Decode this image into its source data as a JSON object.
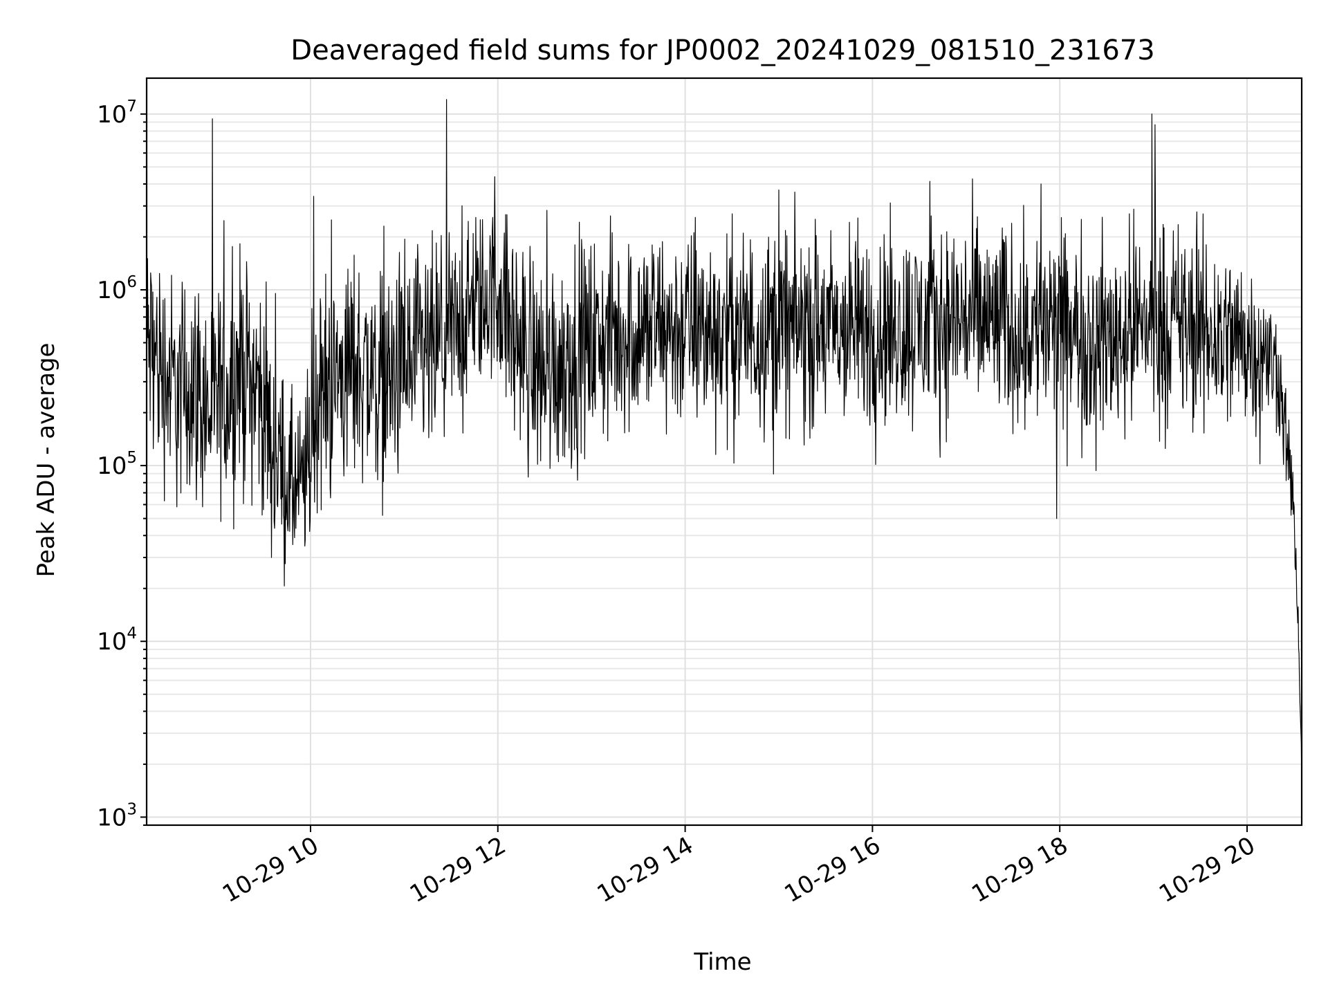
{
  "chart_data": {
    "type": "line",
    "title": "Deaveraged field sums for JP0002_20241029_081510_231673",
    "xlabel": "Time",
    "ylabel": "Peak ADU - average",
    "yscale": "log",
    "xlim": [
      "2024-10-29 08:15",
      "2024-10-29 20:35"
    ],
    "ylim": [
      900,
      16000000
    ],
    "grid": "both",
    "x_ticks": [
      {
        "value": "2024-10-29 10:00",
        "label": "10-29 10"
      },
      {
        "value": "2024-10-29 12:00",
        "label": "10-29 12"
      },
      {
        "value": "2024-10-29 14:00",
        "label": "10-29 14"
      },
      {
        "value": "2024-10-29 16:00",
        "label": "10-29 16"
      },
      {
        "value": "2024-10-29 18:00",
        "label": "10-29 18"
      },
      {
        "value": "2024-10-29 20:00",
        "label": "10-29 20"
      }
    ],
    "y_ticks": [
      {
        "value": 1000,
        "base": "10",
        "exp": "3"
      },
      {
        "value": 10000,
        "base": "10",
        "exp": "4"
      },
      {
        "value": 100000,
        "base": "10",
        "exp": "5"
      },
      {
        "value": 1000000,
        "base": "10",
        "exp": "6"
      },
      {
        "value": 10000000,
        "base": "10",
        "exp": "7"
      }
    ],
    "series": [
      {
        "color": "#000000",
        "x": [
          "2024-10-29 08:15",
          "2024-10-29 08:25",
          "2024-10-29 08:35",
          "2024-10-29 08:45",
          "2024-10-29 08:55",
          "2024-10-29 09:05",
          "2024-10-29 09:15",
          "2024-10-29 09:25",
          "2024-10-29 09:35",
          "2024-10-29 09:45",
          "2024-10-29 09:55",
          "2024-10-29 10:05",
          "2024-10-29 10:15",
          "2024-10-29 10:30",
          "2024-10-29 10:45",
          "2024-10-29 11:00",
          "2024-10-29 11:15",
          "2024-10-29 11:30",
          "2024-10-29 11:45",
          "2024-10-29 12:00",
          "2024-10-29 12:15",
          "2024-10-29 12:30",
          "2024-10-29 12:45",
          "2024-10-29 13:00",
          "2024-10-29 13:30",
          "2024-10-29 14:00",
          "2024-10-29 14:30",
          "2024-10-29 15:00",
          "2024-10-29 15:30",
          "2024-10-29 16:00",
          "2024-10-29 16:30",
          "2024-10-29 17:00",
          "2024-10-29 17:30",
          "2024-10-29 18:00",
          "2024-10-29 18:30",
          "2024-10-29 19:00",
          "2024-10-29 19:30",
          "2024-10-29 20:00",
          "2024-10-29 20:20",
          "2024-10-29 20:30",
          "2024-10-29 20:35"
        ],
        "y": [
          500000,
          350000,
          250000,
          300000,
          200000,
          250000,
          350000,
          300000,
          150000,
          80000,
          70000,
          250000,
          300000,
          380000,
          300000,
          350000,
          400000,
          550000,
          800000,
          1000000,
          450000,
          350000,
          420000,
          500000,
          580000,
          600000,
          580000,
          620000,
          580000,
          600000,
          620000,
          700000,
          620000,
          580000,
          520000,
          700000,
          560000,
          520000,
          350000,
          60000,
          2000
        ],
        "spread": [
          0.45,
          0.45,
          0.45,
          0.45,
          0.45,
          0.45,
          0.45,
          0.45,
          0.4,
          0.35,
          0.35,
          0.45,
          0.45,
          0.45,
          0.45,
          0.45,
          0.45,
          0.4,
          0.35,
          0.35,
          0.45,
          0.45,
          0.45,
          0.4,
          0.4,
          0.4,
          0.4,
          0.4,
          0.4,
          0.4,
          0.4,
          0.4,
          0.4,
          0.4,
          0.4,
          0.4,
          0.4,
          0.35,
          0.25,
          0.15,
          0.1
        ],
        "peaks": [
          {
            "x": "2024-10-29 10:02",
            "y": 3400000
          },
          {
            "x": "2024-10-29 11:58",
            "y": 4400000
          },
          {
            "x": "2024-10-29 18:59",
            "y": 10000000
          },
          {
            "x": "2024-10-29 19:01",
            "y": 8700000
          },
          {
            "x": "2024-10-29 17:48",
            "y": 4000000
          },
          {
            "x": "2024-10-29 15:00",
            "y": 3700000
          },
          {
            "x": "2024-10-29 09:35",
            "y": 30000
          },
          {
            "x": "2024-10-29 17:58",
            "y": 50000
          }
        ]
      }
    ]
  }
}
